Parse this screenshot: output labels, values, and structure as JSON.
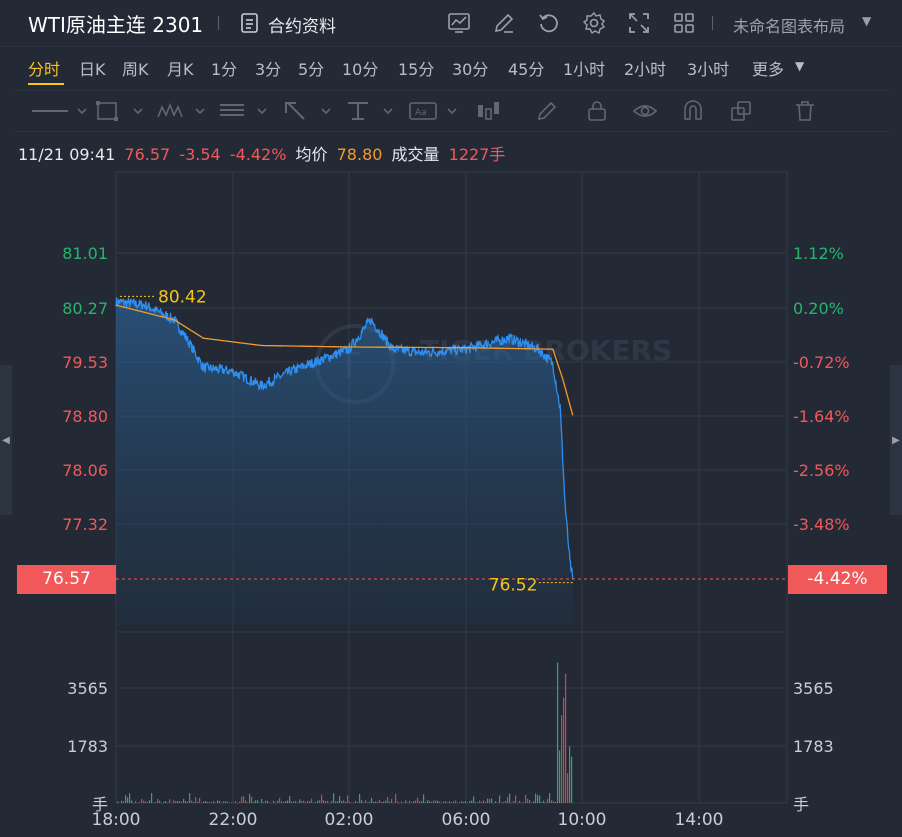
{
  "header": {
    "title": "WTI原油主连 2301",
    "doc_label": "合约资料",
    "layout_label": "未命名图表布局"
  },
  "periods": [
    "分时",
    "日K",
    "周K",
    "月K",
    "1分",
    "3分",
    "5分",
    "10分",
    "15分",
    "30分",
    "45分",
    "1小时",
    "2小时",
    "3小时",
    "更多"
  ],
  "active_period": "分时",
  "info": {
    "datetime": "11/21 09:41",
    "price": "76.57",
    "change": "-3.54",
    "change_pct": "-4.42%",
    "avg_label": "均价",
    "avg_value": "78.80",
    "volume_label": "成交量",
    "volume_value": "1227手"
  },
  "price_axis_left": [
    "81.01",
    "80.27",
    "79.53",
    "78.80",
    "78.06",
    "77.32"
  ],
  "price_axis_right": [
    "1.12%",
    "0.20%",
    "-0.72%",
    "-1.64%",
    "-2.56%",
    "-3.48%"
  ],
  "current_price_left": "76.57",
  "current_price_right": "-4.42%",
  "high_label": "80.42",
  "low_label": "76.52",
  "volume_axis": [
    "3565",
    "1783"
  ],
  "volume_unit": "手",
  "time_axis": [
    "18:00",
    "22:00",
    "02:00",
    "06:00",
    "10:00",
    "14:00"
  ],
  "watermark": "TIGER BROKERS",
  "colors": {
    "up": "#25b56f",
    "down": "#f0585a",
    "accent": "#f5c518",
    "price_line": "#2e8ff0",
    "avg_line": "#f29a2e"
  },
  "chart_data": {
    "type": "line",
    "title": "WTI原油主连 2301",
    "prev_close": 80.11,
    "x_ticks": [
      "18:00",
      "22:00",
      "02:00",
      "06:00",
      "10:00",
      "14:00"
    ],
    "price_keypoints": [
      {
        "t": "18:00",
        "v": 80.35
      },
      {
        "t": "19:00",
        "v": 80.3
      },
      {
        "t": "20:00",
        "v": 80.1
      },
      {
        "t": "20:30",
        "v": 79.8
      },
      {
        "t": "21:00",
        "v": 79.45
      },
      {
        "t": "22:00",
        "v": 79.4
      },
      {
        "t": "23:00",
        "v": 79.2
      },
      {
        "t": "00:00",
        "v": 79.4
      },
      {
        "t": "01:00",
        "v": 79.55
      },
      {
        "t": "02:00",
        "v": 79.7
      },
      {
        "t": "02:45",
        "v": 80.1
      },
      {
        "t": "03:30",
        "v": 79.7
      },
      {
        "t": "04:30",
        "v": 79.65
      },
      {
        "t": "06:00",
        "v": 79.7
      },
      {
        "t": "07:30",
        "v": 79.85
      },
      {
        "t": "08:30",
        "v": 79.7
      },
      {
        "t": "09:00",
        "v": 79.5
      },
      {
        "t": "09:15",
        "v": 78.9
      },
      {
        "t": "09:25",
        "v": 77.6
      },
      {
        "t": "09:35",
        "v": 76.8
      },
      {
        "t": "09:41",
        "v": 76.57
      }
    ],
    "avg_keypoints": [
      {
        "t": "18:00",
        "v": 80.3
      },
      {
        "t": "20:00",
        "v": 80.1
      },
      {
        "t": "21:00",
        "v": 79.85
      },
      {
        "t": "23:00",
        "v": 79.75
      },
      {
        "t": "02:00",
        "v": 79.73
      },
      {
        "t": "06:00",
        "v": 79.72
      },
      {
        "t": "09:00",
        "v": 79.7
      },
      {
        "t": "09:20",
        "v": 79.3
      },
      {
        "t": "09:41",
        "v": 78.8
      }
    ],
    "high": 80.42,
    "low": 76.52,
    "ylim": [
      76.57,
      81.01
    ],
    "volume_ylim": [
      0,
      5348
    ]
  }
}
